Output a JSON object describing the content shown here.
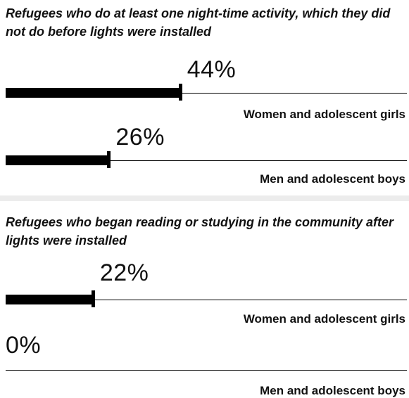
{
  "chart_data": [
    {
      "type": "bar",
      "title": "Refugees who do at least one night-time activity, which they did not do before lights were installed",
      "categories": [
        "Women and adolescent girls",
        "Men and adolescent boys"
      ],
      "values": [
        44,
        26
      ],
      "value_labels": [
        "44%",
        "26%"
      ],
      "unit": "%",
      "xlim": [
        0,
        100
      ]
    },
    {
      "type": "bar",
      "title": "Refugees who began reading or studying in the community after lights were installed",
      "categories": [
        "Women and adolescent girls",
        "Men and adolescent boys"
      ],
      "values": [
        22,
        0
      ],
      "value_labels": [
        "22%",
        "0%"
      ],
      "unit": "%",
      "xlim": [
        0,
        100
      ]
    }
  ],
  "colors": {
    "bar": "#000000",
    "text": "#111111",
    "background": "#ffffff",
    "separator": "#ececec"
  }
}
